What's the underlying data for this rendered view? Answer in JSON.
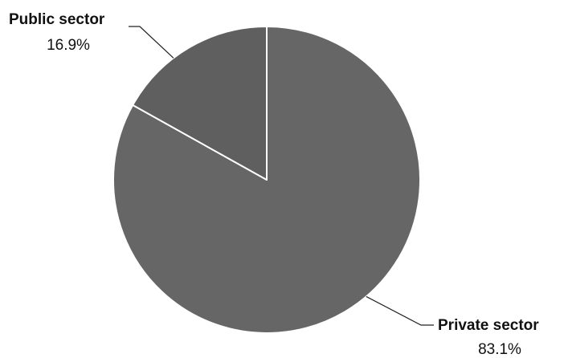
{
  "chart_data": {
    "type": "pie",
    "categories": [
      "Private sector",
      "Public sector"
    ],
    "values": [
      83.1,
      16.9
    ],
    "value_labels": [
      "83.1%",
      "16.9%"
    ],
    "start": "12 o'clock",
    "direction": "clockwise",
    "legend": "none",
    "colors": {
      "Private sector": "#666666",
      "Public sector": "#5f5f5f",
      "slice_border": "#ffffff",
      "leader_line": "#222222"
    }
  }
}
